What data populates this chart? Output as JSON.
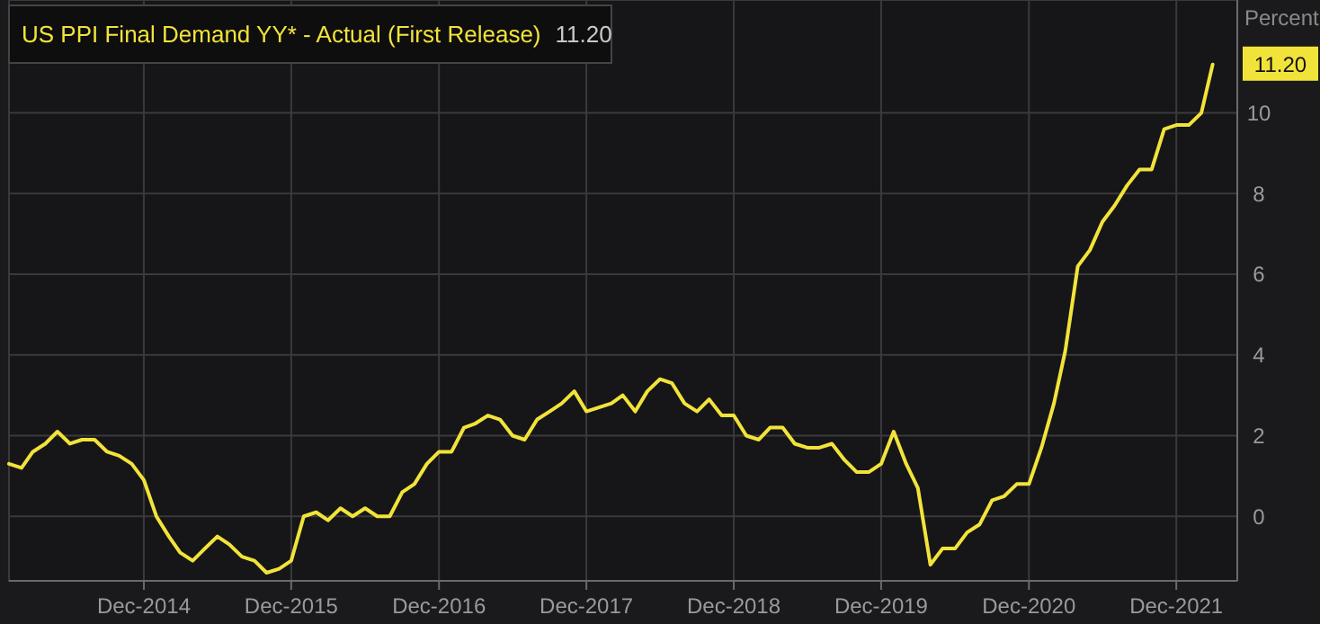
{
  "chart_data": {
    "type": "line",
    "ylabel": "Percent",
    "legend": "top left",
    "grid": true,
    "marker": "none",
    "line_style": "solid",
    "annotations": [
      "11.20",
      {
        "text": "11.20",
        "x": "2022-03",
        "y": 11.2
      }
    ],
    "xlim": [
      "2014-01",
      "2022-05"
    ],
    "ylim": [
      -1.6,
      12.8
    ],
    "xticks": [
      {
        "value": "2014-12",
        "label": "Dec-2014"
      },
      {
        "value": "2015-12",
        "label": "Dec-2015"
      },
      {
        "value": "2016-12",
        "label": "Dec-2016"
      },
      {
        "value": "2017-12",
        "label": "Dec-2017"
      },
      {
        "value": "2018-12",
        "label": "Dec-2018"
      },
      {
        "value": "2019-12",
        "label": "Dec-2019"
      },
      {
        "value": "2020-12",
        "label": "Dec-2020"
      },
      {
        "value": "2021-12",
        "label": "Dec-2021"
      }
    ],
    "yticks": [
      0,
      2,
      4,
      6,
      8,
      10
    ],
    "x": [
      "2014-01",
      "2014-02",
      "2014-03",
      "2014-04",
      "2014-05",
      "2014-06",
      "2014-07",
      "2014-08",
      "2014-09",
      "2014-10",
      "2014-11",
      "2014-12",
      "2015-01",
      "2015-02",
      "2015-03",
      "2015-04",
      "2015-05",
      "2015-06",
      "2015-07",
      "2015-08",
      "2015-09",
      "2015-10",
      "2015-11",
      "2015-12",
      "2016-01",
      "2016-02",
      "2016-03",
      "2016-04",
      "2016-05",
      "2016-06",
      "2016-07",
      "2016-08",
      "2016-09",
      "2016-10",
      "2016-11",
      "2016-12",
      "2017-01",
      "2017-02",
      "2017-03",
      "2017-04",
      "2017-05",
      "2017-06",
      "2017-07",
      "2017-08",
      "2017-09",
      "2017-10",
      "2017-11",
      "2017-12",
      "2018-01",
      "2018-02",
      "2018-03",
      "2018-04",
      "2018-05",
      "2018-06",
      "2018-07",
      "2018-08",
      "2018-09",
      "2018-10",
      "2018-11",
      "2018-12",
      "2019-01",
      "2019-02",
      "2019-03",
      "2019-04",
      "2019-05",
      "2019-06",
      "2019-07",
      "2019-08",
      "2019-09",
      "2019-10",
      "2019-11",
      "2019-12",
      "2020-01",
      "2020-02",
      "2020-03",
      "2020-04",
      "2020-05",
      "2020-06",
      "2020-07",
      "2020-08",
      "2020-09",
      "2020-10",
      "2020-11",
      "2020-12",
      "2021-01",
      "2021-02",
      "2021-03",
      "2021-04",
      "2021-05",
      "2021-06",
      "2021-07",
      "2021-08",
      "2021-09",
      "2021-10",
      "2021-11",
      "2021-12",
      "2022-01",
      "2022-02",
      "2022-03"
    ],
    "series": [
      {
        "name": "US PPI Final Demand YY* - Actual (First Release)",
        "color": "#f2e33a",
        "values": [
          1.3,
          1.2,
          1.6,
          1.8,
          2.1,
          1.8,
          1.9,
          1.9,
          1.6,
          1.5,
          1.3,
          0.9,
          0.0,
          -0.5,
          -0.9,
          -1.1,
          -0.8,
          -0.5,
          -0.7,
          -1.0,
          -1.1,
          -1.4,
          -1.3,
          -1.1,
          0.0,
          0.1,
          -0.1,
          0.2,
          0.0,
          0.2,
          0.0,
          0.0,
          0.6,
          0.8,
          1.3,
          1.6,
          1.6,
          2.2,
          2.3,
          2.5,
          2.4,
          2.0,
          1.9,
          2.4,
          2.6,
          2.8,
          3.1,
          2.6,
          2.7,
          2.8,
          3.0,
          2.6,
          3.1,
          3.4,
          3.3,
          2.8,
          2.6,
          2.9,
          2.5,
          2.5,
          2.0,
          1.9,
          2.2,
          2.2,
          1.8,
          1.7,
          1.7,
          1.8,
          1.4,
          1.1,
          1.1,
          1.3,
          2.1,
          1.3,
          0.7,
          -1.2,
          -0.8,
          -0.8,
          -0.4,
          -0.2,
          0.4,
          0.5,
          0.8,
          0.8,
          1.7,
          2.8,
          4.1,
          6.2,
          6.6,
          7.3,
          7.7,
          8.2,
          8.6,
          8.6,
          9.6,
          9.7,
          9.7,
          10.0,
          11.2
        ]
      }
    ]
  }
}
